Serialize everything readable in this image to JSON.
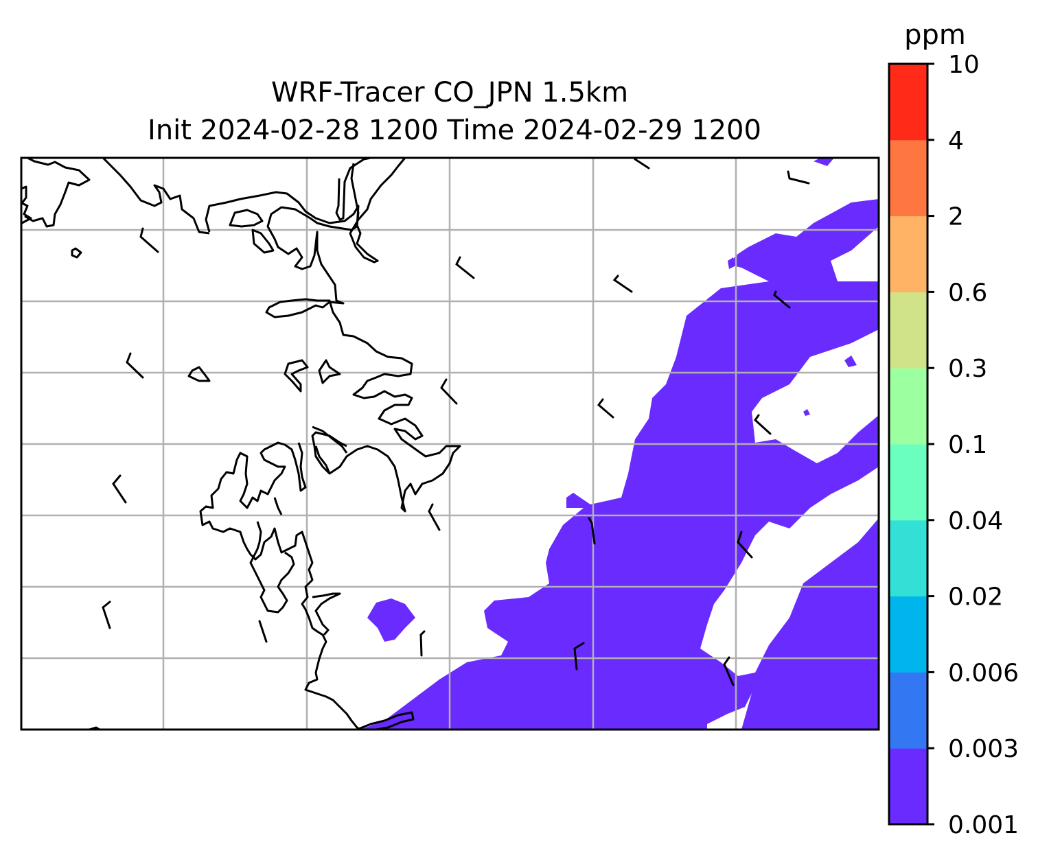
{
  "title": {
    "line1": "WRF-Tracer CO_JPN 1.5km",
    "line2": "Init 2024-02-28 1200 Time 2024-02-29 1200"
  },
  "colorbar": {
    "unit": "ppm",
    "levels": [
      "0.001",
      "0.003",
      "0.006",
      "0.02",
      "0.04",
      "0.1",
      "0.3",
      "0.6",
      "2",
      "4",
      "10"
    ],
    "colors": [
      "#6a2bff",
      "#3377f2",
      "#00b4ec",
      "#33e0d6",
      "#6bffbf",
      "#9cffa0",
      "#d1e388",
      "#ffb364",
      "#ff7740",
      "#ff2a18"
    ]
  },
  "map": {
    "plume_color": "#6a2bff",
    "coastline_color": "#000000",
    "grid_color": "#b0b0b0",
    "gridlines": true,
    "wind_barbs": true
  }
}
